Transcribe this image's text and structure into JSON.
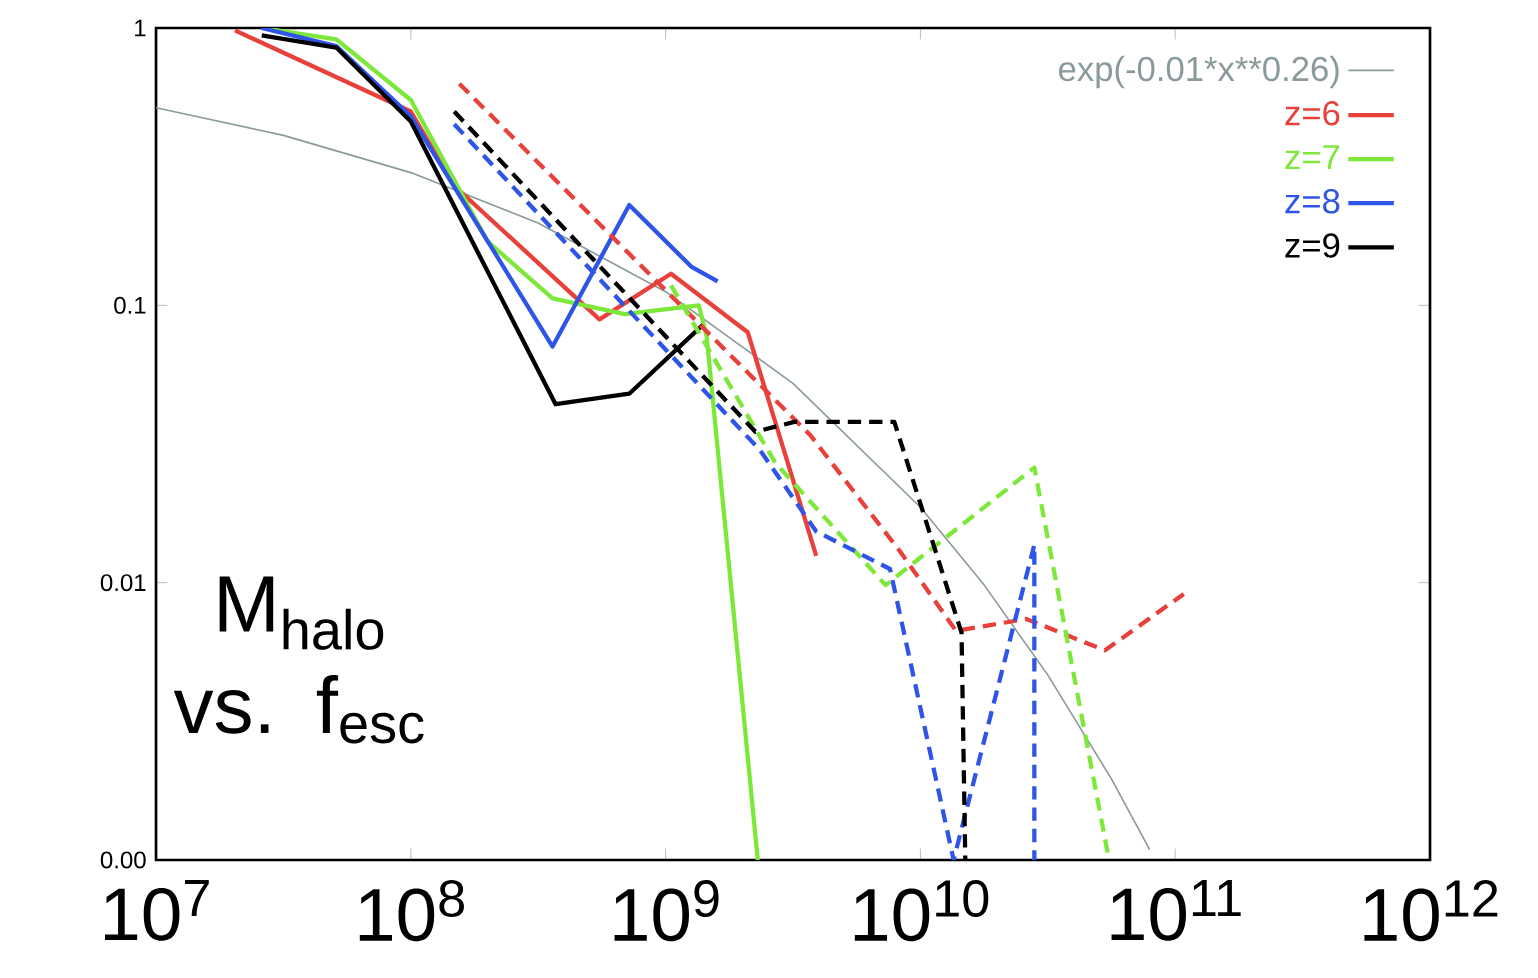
{
  "chart_data": {
    "type": "line",
    "log": "xy",
    "legend": "top right",
    "xlim": [
      10000000.0,
      1000000000000.0
    ],
    "ylim": [
      0.001,
      1
    ],
    "xticks": [
      {
        "value": 10000000.0,
        "label": "10$^{7}$"
      },
      {
        "value": 100000000.0,
        "label": "10$^{8}$"
      },
      {
        "value": 1000000000.0,
        "label": "10$^{9}$"
      },
      {
        "value": 10000000000.0,
        "label": "10$^{10}$"
      },
      {
        "value": 100000000000.0,
        "label": "10$^{11}$"
      },
      {
        "value": 1000000000000.0,
        "label": "10$^{12}$"
      }
    ],
    "yticks": [
      {
        "value": 0.001,
        "label": "0.00"
      },
      0.01,
      0.1,
      1
    ],
    "annotations": [
      "M$_{halo}$ vs. f$_{esc}$"
    ],
    "series": [
      {
        "name": "exp(-0.01*x**0.26)",
        "color": "#8a9a9a",
        "line_style": "solid",
        "x": [
          10000000.0,
          31600000.0,
          100000000.0,
          316000000.0,
          1000000000.0,
          3160000000.0,
          10000000000.0,
          17800000000.0,
          31600000000.0,
          56200000000.0,
          79400000000.0
        ],
        "values": [
          0.516,
          0.41,
          0.301,
          0.198,
          0.112,
          0.0523,
          0.0187,
          0.0098,
          0.00465,
          0.00196,
          0.00109
        ]
      },
      {
        "name": "z=6",
        "color": "#e8403a",
        "line_style": "solid",
        "x": [
          20400000.0,
          100000000.0,
          148000000.0,
          550000000.0,
          1050000000.0,
          2100000000.0,
          3900000000.0
        ],
        "values": [
          0.98,
          0.5,
          0.27,
          0.089,
          0.13,
          0.08,
          0.0125
        ]
      },
      {
        "name": "z=7",
        "color": "#7ee83a",
        "line_style": "solid",
        "x": [
          26000000.0,
          51000000.0,
          100000000.0,
          200000000.0,
          360000000.0,
          690000000.0,
          1350000000.0,
          1450000000.0,
          2300000000.0
        ],
        "values": [
          1.0,
          0.91,
          0.55,
          0.17,
          0.106,
          0.093,
          0.1,
          0.077,
          0.001
        ]
      },
      {
        "name": "z=8",
        "color": "#2f55e8",
        "line_style": "solid",
        "x": [
          26000000.0,
          51000000.0,
          100000000.0,
          360000000.0,
          720000000.0,
          1260000000.0,
          1600000000.0
        ],
        "values": [
          1.0,
          0.86,
          0.48,
          0.071,
          0.23,
          0.138,
          0.122
        ]
      },
      {
        "name": "z=9",
        "color": "#000000",
        "line_style": "solid",
        "x": [
          26000000.0,
          51000000.0,
          100000000.0,
          370000000.0,
          720000000.0,
          1400000000.0
        ],
        "values": [
          0.94,
          0.85,
          0.46,
          0.044,
          0.048,
          0.085
        ]
      },
      {
        "color": "#e8403a",
        "line_style": "dashed",
        "x": [
          155000000.0,
          3700000000.0,
          8300000000.0,
          13800000000.0,
          26000000000.0,
          53000000000.0,
          108000000000.0
        ],
        "values": [
          0.63,
          0.034,
          0.013,
          0.0067,
          0.0074,
          0.0057,
          0.0091
        ]
      },
      {
        "color": "#7ee83a",
        "line_style": "dashed",
        "x": [
          1050000000.0,
          2700000000.0,
          7300000000.0,
          28000000000.0,
          55000000000.0
        ],
        "values": [
          0.118,
          0.027,
          0.0098,
          0.026,
          0.001
        ]
      },
      {
        "color": "#2f55e8",
        "line_style": "dashed",
        "x": [
          148000000.0,
          2350000000.0,
          3900000000.0,
          7600000000.0,
          13500000000.0,
          28000000000.0,
          28000000000.0
        ],
        "values": [
          0.45,
          0.03,
          0.0153,
          0.0112,
          0.001,
          0.0137,
          0.001
        ]
      },
      {
        "color": "#000000",
        "line_style": "dashed",
        "x": [
          148000000.0,
          2250000000.0,
          3200000000.0,
          7900000000.0,
          14500000000.0,
          15000000000.0
        ],
        "values": [
          0.5,
          0.035,
          0.038,
          0.038,
          0.0066,
          0.001
        ]
      }
    ]
  }
}
